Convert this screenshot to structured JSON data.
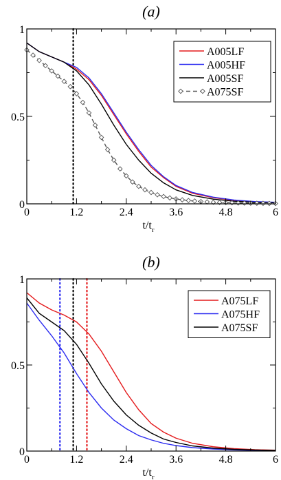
{
  "chart_data": [
    {
      "type": "line",
      "panel_label": "(a)",
      "xlabel": "t/t",
      "xlabel_sub": "r",
      "ylabel": "",
      "xlim": [
        0,
        6
      ],
      "ylim": [
        0,
        1
      ],
      "x_ticks": [
        "0",
        "1.2",
        "2.4",
        "3.6",
        "4.8",
        "6"
      ],
      "y_ticks": [
        "0",
        "0.5",
        "1"
      ],
      "legend_position": "top-right",
      "grid": false,
      "vlines": [
        {
          "x": 1.12,
          "color": "#000000",
          "style": "dotted"
        }
      ],
      "series": [
        {
          "name": "A005LF",
          "color": "#e41a1c",
          "style": "solid",
          "marker": "none",
          "x": [
            0,
            0.3,
            0.6,
            0.9,
            1.2,
            1.5,
            1.8,
            2.1,
            2.4,
            2.7,
            3.0,
            3.3,
            3.6,
            4.0,
            4.5,
            5.0,
            5.5,
            6.0
          ],
          "y": [
            0.92,
            0.87,
            0.84,
            0.81,
            0.77,
            0.71,
            0.62,
            0.51,
            0.4,
            0.3,
            0.21,
            0.15,
            0.1,
            0.06,
            0.035,
            0.02,
            0.012,
            0.008
          ]
        },
        {
          "name": "A005HF",
          "color": "#2b2bf0",
          "style": "solid",
          "marker": "none",
          "x": [
            0,
            0.3,
            0.6,
            0.9,
            1.2,
            1.5,
            1.8,
            2.1,
            2.4,
            2.7,
            3.0,
            3.3,
            3.6,
            4.0,
            4.5,
            5.0,
            5.5,
            6.0
          ],
          "y": [
            0.92,
            0.87,
            0.84,
            0.81,
            0.78,
            0.72,
            0.63,
            0.52,
            0.41,
            0.31,
            0.22,
            0.155,
            0.105,
            0.065,
            0.038,
            0.022,
            0.013,
            0.009
          ]
        },
        {
          "name": "A005SF",
          "color": "#000000",
          "style": "solid",
          "marker": "none",
          "x": [
            0,
            0.3,
            0.6,
            0.9,
            1.2,
            1.5,
            1.8,
            2.1,
            2.4,
            2.7,
            3.0,
            3.3,
            3.6,
            4.0,
            4.5,
            5.0,
            5.5,
            6.0
          ],
          "y": [
            0.92,
            0.87,
            0.84,
            0.81,
            0.76,
            0.68,
            0.57,
            0.45,
            0.34,
            0.25,
            0.175,
            0.12,
            0.08,
            0.048,
            0.027,
            0.015,
            0.009,
            0.006
          ]
        },
        {
          "name": "A075SF",
          "color": "#555555",
          "style": "dashed",
          "marker": "diamond",
          "x": [
            0,
            0.15,
            0.3,
            0.45,
            0.6,
            0.75,
            0.9,
            1.05,
            1.2,
            1.35,
            1.5,
            1.65,
            1.8,
            1.95,
            2.1,
            2.25,
            2.4,
            2.55,
            2.7,
            2.85,
            3.0,
            3.15,
            3.3,
            3.45,
            3.6,
            3.75,
            3.9,
            4.05,
            4.2,
            4.35,
            4.5,
            4.65,
            4.8,
            4.95,
            5.1,
            5.25,
            5.4,
            5.55,
            5.7,
            5.85,
            6.0
          ],
          "y": [
            0.88,
            0.85,
            0.82,
            0.79,
            0.76,
            0.73,
            0.7,
            0.67,
            0.63,
            0.58,
            0.52,
            0.45,
            0.38,
            0.31,
            0.25,
            0.2,
            0.16,
            0.125,
            0.1,
            0.08,
            0.065,
            0.052,
            0.042,
            0.034,
            0.028,
            0.023,
            0.019,
            0.016,
            0.013,
            0.011,
            0.009,
            0.008,
            0.007,
            0.006,
            0.005,
            0.0045,
            0.004,
            0.0035,
            0.003,
            0.0025,
            0.002
          ]
        }
      ]
    },
    {
      "type": "line",
      "panel_label": "(b)",
      "xlabel": "t/t",
      "xlabel_sub": "r",
      "ylabel": "",
      "xlim": [
        0,
        6
      ],
      "ylim": [
        0,
        1
      ],
      "x_ticks": [
        "0",
        "1.2",
        "2.4",
        "3.6",
        "4.8",
        "6"
      ],
      "y_ticks": [
        "0",
        "0.5",
        "1"
      ],
      "legend_position": "top-right",
      "grid": false,
      "vlines": [
        {
          "x": 0.8,
          "color": "#2b2bf0",
          "style": "dotted"
        },
        {
          "x": 1.12,
          "color": "#000000",
          "style": "dotted"
        },
        {
          "x": 1.45,
          "color": "#e41a1c",
          "style": "dotted"
        }
      ],
      "series": [
        {
          "name": "A075LF",
          "color": "#e41a1c",
          "style": "solid",
          "marker": "none",
          "x": [
            0,
            0.3,
            0.6,
            0.9,
            1.2,
            1.5,
            1.8,
            2.1,
            2.4,
            2.7,
            3.0,
            3.3,
            3.6,
            4.0,
            4.5,
            5.0,
            5.5,
            6.0
          ],
          "y": [
            0.92,
            0.86,
            0.82,
            0.79,
            0.75,
            0.68,
            0.58,
            0.46,
            0.34,
            0.24,
            0.16,
            0.11,
            0.075,
            0.045,
            0.025,
            0.014,
            0.008,
            0.005
          ]
        },
        {
          "name": "A075HF",
          "color": "#2b2bf0",
          "style": "solid",
          "marker": "none",
          "x": [
            0,
            0.3,
            0.6,
            0.9,
            1.2,
            1.5,
            1.8,
            2.1,
            2.4,
            2.7,
            3.0,
            3.3,
            3.6,
            4.0,
            4.5,
            5.0,
            5.5,
            6.0
          ],
          "y": [
            0.86,
            0.76,
            0.67,
            0.57,
            0.45,
            0.34,
            0.25,
            0.18,
            0.13,
            0.09,
            0.065,
            0.045,
            0.032,
            0.02,
            0.012,
            0.007,
            0.004,
            0.003
          ]
        },
        {
          "name": "A075SF",
          "color": "#000000",
          "style": "solid",
          "marker": "none",
          "x": [
            0,
            0.3,
            0.6,
            0.9,
            1.2,
            1.5,
            1.8,
            2.1,
            2.4,
            2.7,
            3.0,
            3.3,
            3.6,
            4.0,
            4.5,
            5.0,
            5.5,
            6.0
          ],
          "y": [
            0.89,
            0.8,
            0.75,
            0.7,
            0.62,
            0.51,
            0.39,
            0.29,
            0.21,
            0.15,
            0.105,
            0.07,
            0.05,
            0.03,
            0.017,
            0.01,
            0.006,
            0.004
          ]
        }
      ]
    }
  ]
}
